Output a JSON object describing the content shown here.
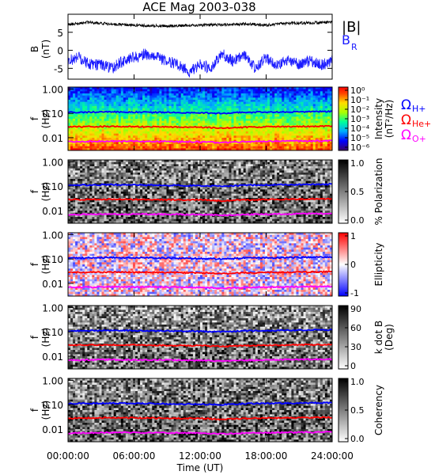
{
  "title": "ACE Mag 2003-038",
  "x_axis": {
    "label": "Time (UT)",
    "ticks": [
      "00:00:00",
      "06:00:00",
      "12:00:00",
      "18:00:00",
      "24:00:00"
    ],
    "range_hours": [
      0,
      24
    ]
  },
  "colors": {
    "B_total": "#000000",
    "B_R": "#1a1aff",
    "omega_H": "#0000ff",
    "omega_He": "#ff0000",
    "omega_O": "#ff00ff"
  },
  "legend_top": [
    "|B|",
    "B",
    "R"
  ],
  "legend_freq": [
    {
      "main": "Ω",
      "sub": "H+",
      "color": "#0000ff"
    },
    {
      "main": "Ω",
      "sub": "He+",
      "color": "#ff0000"
    },
    {
      "main": "Ω",
      "sub": "O+",
      "color": "#ff00ff"
    }
  ],
  "chart_data": [
    {
      "type": "line",
      "panel": "B",
      "ylabel_main": "B",
      "ylabel_unit": "(nT)",
      "ylim": [
        -8,
        10
      ],
      "yticks": [
        "5",
        "0",
        "-5"
      ],
      "series": [
        {
          "name": "|B|",
          "x": [
            0,
            2,
            4,
            6,
            8,
            10,
            12,
            14,
            16,
            18,
            20,
            22,
            24
          ],
          "values": [
            7.2,
            7.8,
            7.2,
            7.0,
            6.8,
            6.8,
            7.0,
            7.1,
            7.3,
            7.0,
            7.5,
            7.6,
            7.8
          ]
        },
        {
          "name": "B_R",
          "x": [
            0,
            1,
            2,
            3,
            4,
            5,
            6,
            7,
            8,
            9,
            10,
            11,
            12,
            13,
            14,
            15,
            16,
            17,
            18,
            19,
            20,
            21,
            22,
            23,
            24
          ],
          "values": [
            -3,
            -2,
            -4,
            -4,
            -5,
            -3,
            -2,
            -1,
            -2,
            -3,
            -4,
            -6,
            -4,
            -5,
            -1,
            -3,
            -1,
            -5,
            -2,
            -4,
            -3,
            -4,
            -3,
            -4,
            -3
          ]
        }
      ]
    },
    {
      "type": "heatmap",
      "panel": "intensity",
      "ylabel_main": "f",
      "ylabel_unit": "(Hz)",
      "yticks": [
        "1.00",
        "0.10",
        "0.01"
      ],
      "ylim_hz": [
        0.003,
        1.2
      ],
      "colorbar_label": [
        "Intensity",
        "(nT²/Hz)"
      ],
      "colorbar_ticks": [
        "10⁰",
        "10⁻¹",
        "10⁻²",
        "10⁻³",
        "10⁻⁴",
        "10⁻⁵",
        "10⁻⁶"
      ]
    },
    {
      "type": "heatmap",
      "panel": "polarization",
      "ylabel_main": "f",
      "ylabel_unit": "(Hz)",
      "yticks": [
        "1.00",
        "0.10",
        "0.01"
      ],
      "colorbar_label": [
        "% Polarization"
      ],
      "colorbar_ticks": [
        "1.0",
        "0.5",
        "0.0"
      ]
    },
    {
      "type": "heatmap",
      "panel": "ellipticity",
      "ylabel_main": "f",
      "ylabel_unit": "(Hz)",
      "yticks": [
        "1.00",
        "0.10",
        "0.01"
      ],
      "colorbar_label": [
        "Ellipticity"
      ],
      "colorbar_ticks": [
        "1",
        "0",
        "-1"
      ]
    },
    {
      "type": "heatmap",
      "panel": "kdotb",
      "ylabel_main": "f",
      "ylabel_unit": "(Hz)",
      "yticks": [
        "1.00",
        "0.10",
        "0.01"
      ],
      "colorbar_label": [
        "k dot B",
        "(Deg)"
      ],
      "colorbar_ticks": [
        "90",
        "60",
        "30",
        "0"
      ]
    },
    {
      "type": "heatmap",
      "panel": "coherency",
      "ylabel_main": "f",
      "ylabel_unit": "(Hz)",
      "yticks": [
        "1.00",
        "0.10",
        "0.01"
      ],
      "colorbar_label": [
        "Coherency"
      ],
      "colorbar_ticks": [
        "1.0",
        "0.5",
        "0.0"
      ]
    },
    {
      "type": "line",
      "panel": "gyrofrequencies",
      "series": [
        {
          "name": "Ω H+",
          "x": [
            0,
            4,
            8,
            12,
            14,
            16,
            20,
            24
          ],
          "values_hz": [
            0.11,
            0.115,
            0.11,
            0.105,
            0.1,
            0.11,
            0.115,
            0.12
          ]
        },
        {
          "name": "Ω He+",
          "x": [
            0,
            4,
            8,
            12,
            14,
            16,
            20,
            24
          ],
          "values_hz": [
            0.028,
            0.029,
            0.028,
            0.027,
            0.025,
            0.027,
            0.029,
            0.03
          ]
        },
        {
          "name": "Ω O+",
          "x": [
            0,
            4,
            8,
            12,
            14,
            16,
            20,
            24
          ],
          "values_hz": [
            0.0068,
            0.0072,
            0.007,
            0.0068,
            0.0063,
            0.0068,
            0.0072,
            0.0075
          ]
        }
      ]
    }
  ]
}
